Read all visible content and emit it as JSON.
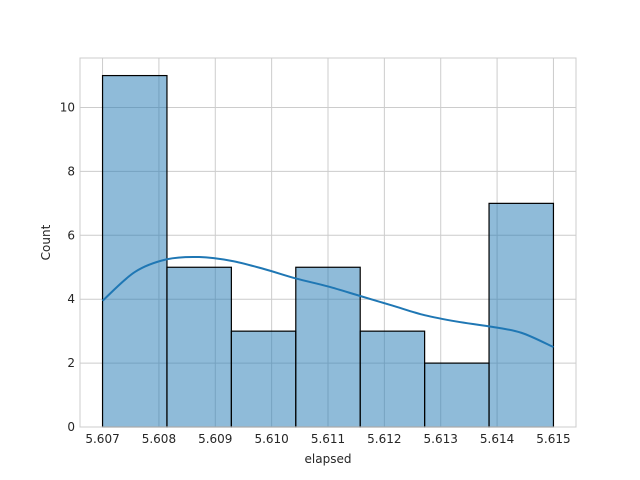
{
  "chart_data": {
    "type": "bar",
    "subtype": "histogram-with-kde",
    "title": "",
    "xlabel": "elapsed",
    "ylabel": "Count",
    "xlim": [
      5.6066,
      5.6154
    ],
    "ylim": [
      0,
      11.55
    ],
    "x_ticks": [
      5.607,
      5.608,
      5.609,
      5.61,
      5.611,
      5.612,
      5.613,
      5.614,
      5.615
    ],
    "x_tick_labels": [
      "5.607",
      "5.608",
      "5.609",
      "5.610",
      "5.611",
      "5.612",
      "5.613",
      "5.614",
      "5.615"
    ],
    "y_ticks": [
      0,
      2,
      4,
      6,
      8,
      10
    ],
    "y_tick_labels": [
      "0",
      "2",
      "4",
      "6",
      "8",
      "10"
    ],
    "grid": true,
    "bins": [
      {
        "start": 5.607,
        "end": 5.608,
        "count": 11
      },
      {
        "start": 5.608,
        "end": 5.609,
        "count": 5
      },
      {
        "start": 5.609,
        "end": 5.61,
        "count": 3
      },
      {
        "start": 5.61,
        "end": 5.611,
        "count": 5
      },
      {
        "start": 5.611,
        "end": 5.612,
        "count": 3
      },
      {
        "start": 5.612,
        "end": 5.613,
        "count": 2
      },
      {
        "start": 5.613,
        "end": 5.614,
        "count": 7
      }
    ],
    "kde": {
      "x": [
        5.607,
        5.6075,
        5.608,
        5.6085,
        5.609,
        5.6095,
        5.61,
        5.6105,
        5.611,
        5.6115,
        5.612,
        5.6125,
        5.613,
        5.6135,
        5.614
      ],
      "y": [
        3.95,
        4.85,
        5.25,
        5.32,
        5.2,
        4.95,
        4.65,
        4.4,
        4.1,
        3.8,
        3.5,
        3.3,
        3.15,
        2.95,
        2.5
      ]
    },
    "colors": {
      "bar_fill": "#1f77b4",
      "bar_fill_opacity": 0.5,
      "bar_edge": "#000000",
      "kde_line": "#1f77b4"
    }
  }
}
